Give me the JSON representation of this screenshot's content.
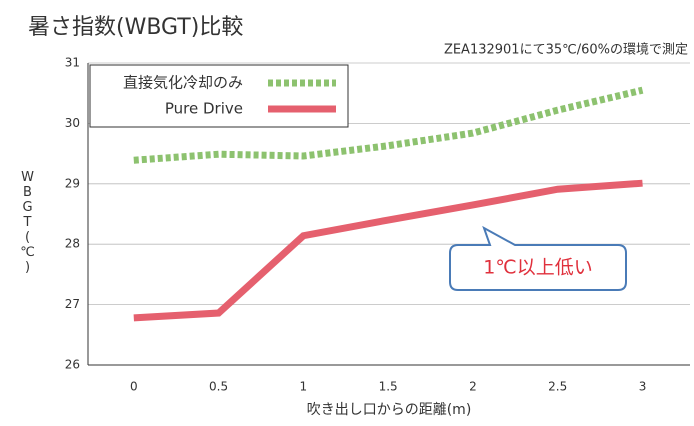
{
  "chart_data": {
    "type": "line",
    "title": "暑さ指数(WBGT)比較",
    "subtitle": "ZEA132901にて35℃/60%の環境で測定",
    "x_label": "吹き出し口からの距離(m)",
    "y_label": "WBGT(℃)",
    "annotation": "1℃以上低い",
    "x": [
      0,
      0.5,
      1,
      1.5,
      2,
      2.5,
      3
    ],
    "xlim": [
      -0.27,
      3.28
    ],
    "xticks": [
      0,
      0.5,
      1,
      1.5,
      2,
      2.5,
      3
    ],
    "ylim": [
      26,
      31
    ],
    "yticks": [
      26,
      27,
      28,
      29,
      30,
      31
    ],
    "grid": true,
    "legend": "upper left",
    "series": [
      {
        "name": "直接気化冷却のみ",
        "color": "#8dc26f",
        "style": "dotted",
        "values": [
          29.39,
          29.49,
          29.46,
          29.63,
          29.84,
          30.22,
          30.55
        ]
      },
      {
        "name": "Pure Drive",
        "color": "#e5606e",
        "style": "solid",
        "values": [
          26.78,
          26.86,
          28.14,
          28.4,
          28.65,
          28.91,
          29.01
        ]
      }
    ]
  }
}
